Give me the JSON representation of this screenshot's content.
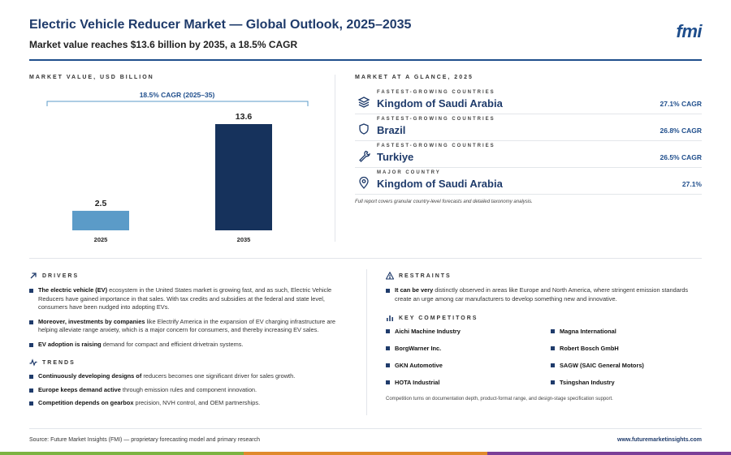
{
  "header": {
    "title": "Electric Vehicle Reducer Market — Global Outlook, 2025–2035",
    "subtitle": "Market value reaches $13.6 billion by 2035, a 18.5% CAGR",
    "logo": "fmi"
  },
  "chart_section_label": "MARKET VALUE, USD BILLION",
  "chart_data": {
    "type": "bar",
    "categories": [
      "2025",
      "2035"
    ],
    "values": [
      2.5,
      13.6
    ],
    "bar_colors": [
      "#5b9bc8",
      "#16325c"
    ],
    "annotation": "18.5% CAGR (2025–35)",
    "value_labels": [
      "2.5",
      "13.6"
    ],
    "ylim": [
      0,
      13.6
    ]
  },
  "glance": {
    "label": "MARKET AT A GLANCE, 2025",
    "rows": [
      {
        "kicker": "FASTEST-GROWING COUNTRIES",
        "name": "Kingdom of Saudi Arabia",
        "value": "27.1% CAGR",
        "icon": "layers-icon"
      },
      {
        "kicker": "FASTEST-GROWING COUNTRIES",
        "name": "Brazil",
        "value": "26.8% CAGR",
        "icon": "shield-icon"
      },
      {
        "kicker": "FASTEST-GROWING COUNTRIES",
        "name": "Turkiye",
        "value": "26.5% CAGR",
        "icon": "wrench-icon"
      },
      {
        "kicker": "MAJOR COUNTRY",
        "name": "Kingdom of Saudi Arabia",
        "value": "27.1%",
        "icon": "location-pin-icon"
      }
    ],
    "note": "Full report covers granular country-level forecasts and detailed taxonomy analysis."
  },
  "drivers": {
    "label": "DRIVERS",
    "items": [
      {
        "bold": "The electric vehicle (EV)",
        "rest": " ecosystem in the United States market is growing fast, and as such, Electric Vehicle Reducers have gained importance in that sales. With tax credits and subsidies at the federal and state level, consumers have been nudged into adopting EVs."
      },
      {
        "bold": "Moreover, investments by companies",
        "rest": " like Electrify America in the expansion of EV charging infrastructure are helping alleviate range anxiety, which is a major concern for consumers, and thereby increasing EV sales."
      },
      {
        "bold": "EV adoption is raising",
        "rest": " demand for compact and efficient drivetrain systems."
      }
    ]
  },
  "trends": {
    "label": "TRENDS",
    "items": [
      {
        "bold": "Continuously developing designs of",
        "rest": " reducers becomes one significant driver for sales growth."
      },
      {
        "bold": "Europe keeps demand active",
        "rest": " through emission rules and component innovation."
      },
      {
        "bold": "Competition depends on gearbox",
        "rest": " precision, NVH control, and OEM partnerships."
      }
    ]
  },
  "restraints": {
    "label": "RESTRAINTS",
    "items": [
      {
        "bold": "It can be very",
        "rest": " distinctly observed in areas like Europe and North America, where stringent emission standards create an urge among car manufacturers to develop something new and innovative."
      }
    ]
  },
  "competitors": {
    "label": "KEY COMPETITORS",
    "items": [
      "Aichi Machine Industry",
      "Magna International",
      "BorgWarner Inc.",
      "Robert Bosch GmbH",
      "GKN Automotive",
      "SAGW (SAIC General Motors)",
      "HOTA Industrial",
      "Tsingshan Industry"
    ],
    "note": "Competition turns on documentation depth, product-format range, and design-stage specification support."
  },
  "footer": {
    "source": "Source: Future Market Insights (FMI) — proprietary forecasting model and primary research",
    "website": "www.futuremarketinsights.com",
    "bar_colors": [
      "#7cb342",
      "#e08a2c",
      "#7b3f98"
    ]
  }
}
